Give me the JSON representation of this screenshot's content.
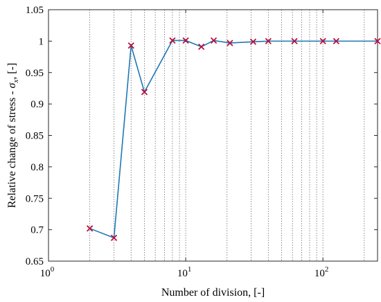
{
  "chart_data": {
    "type": "line",
    "x_scale": "log",
    "xlabel": "Number of division, [-]",
    "ylabel": "Relative change of stress - σx, [-]",
    "ylabel_parts": {
      "prefix": "Relative change of stress - ",
      "symbol": "σ",
      "subscript": "x",
      "suffix": ", [-]"
    },
    "xlim": [
      1,
      250
    ],
    "ylim": [
      0.65,
      1.05
    ],
    "x_major_ticks": [
      {
        "value": 1,
        "base": "10",
        "exp": "0"
      },
      {
        "value": 10,
        "base": "10",
        "exp": "1"
      },
      {
        "value": 100,
        "base": "10",
        "exp": "2"
      }
    ],
    "y_ticks": [
      0.65,
      0.7,
      0.75,
      0.8,
      0.85,
      0.9,
      0.95,
      1,
      1.05
    ],
    "y_tick_labels": [
      "0.65",
      "0.7",
      "0.75",
      "0.8",
      "0.85",
      "0.9",
      "0.95",
      "1",
      "1.05"
    ],
    "grid": {
      "x_major": true,
      "x_minor": true,
      "y": false,
      "style": "dotted"
    },
    "series": [
      {
        "line_color": "#1f77b4",
        "marker": "x",
        "marker_color": "#b5123e",
        "x": [
          2,
          3,
          4,
          5,
          8,
          10,
          13,
          16,
          21,
          31,
          40,
          62,
          100,
          125,
          250
        ],
        "y": [
          0.702,
          0.687,
          0.993,
          0.919,
          1.001,
          1.001,
          0.991,
          1.001,
          0.997,
          0.999,
          1.0,
          1.0,
          1.0,
          1.0,
          1.0
        ]
      }
    ]
  }
}
